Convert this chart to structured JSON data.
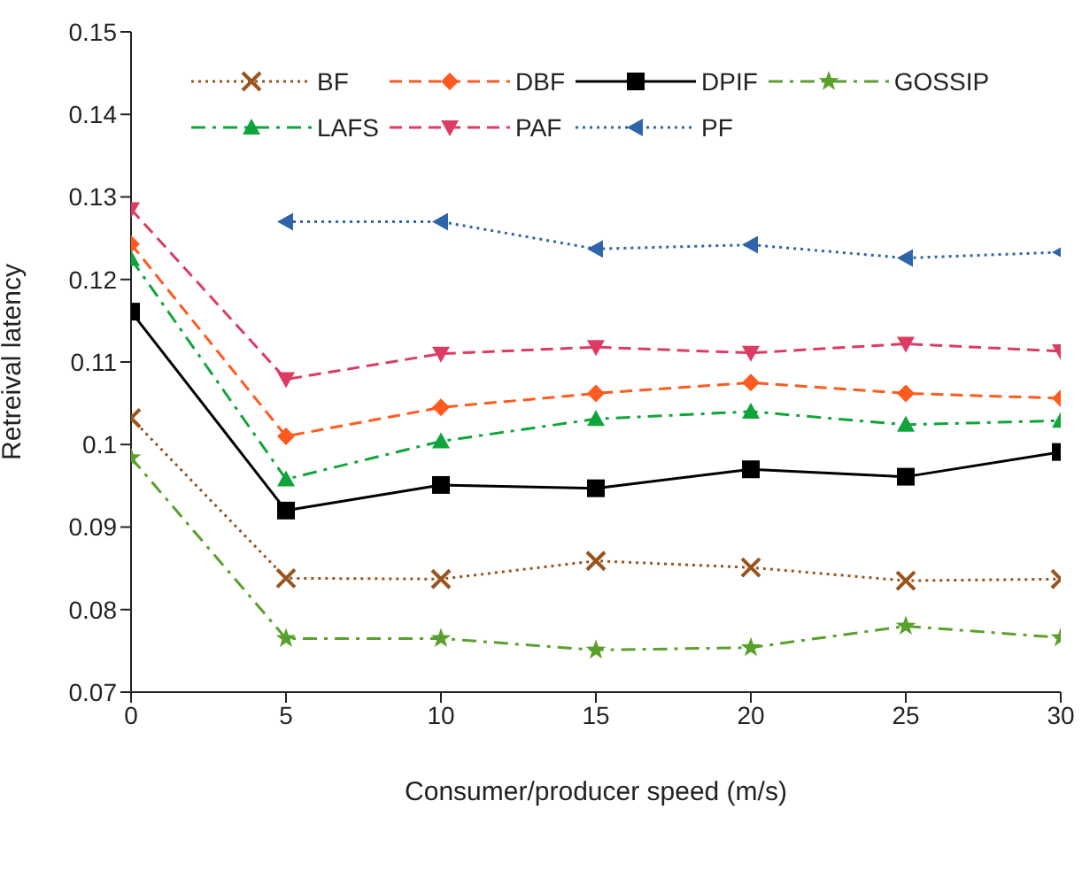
{
  "chart_data": {
    "type": "line",
    "xlabel": "Consumer/producer speed (m/s)",
    "ylabel": "Retreival latency",
    "x": [
      0,
      5,
      10,
      15,
      20,
      25,
      30
    ],
    "xlim": [
      0,
      30
    ],
    "xticks": [
      0,
      5,
      10,
      15,
      20,
      25,
      30
    ],
    "ylim": [
      0.07,
      0.15
    ],
    "yticks": [
      0.07,
      0.08,
      0.09,
      {
        "value": 0.1,
        "label": "0.1"
      },
      0.11,
      0.12,
      0.13,
      0.14,
      0.15
    ],
    "grid": false,
    "legend": "top",
    "series": [
      {
        "name": "BF",
        "color": "#99541e",
        "marker": "cross",
        "line_style": "dotted",
        "values": [
          0.1032,
          0.0838,
          0.0837,
          0.0859,
          0.0851,
          0.0835,
          0.0837
        ]
      },
      {
        "name": "DBF",
        "color": "#ff5a1f",
        "marker": "diamond",
        "line_style": "dashed",
        "values": [
          0.1243,
          0.101,
          0.1045,
          0.1062,
          0.1075,
          0.1062,
          0.1056
        ]
      },
      {
        "name": "DPIF",
        "color": "#000000",
        "marker": "square",
        "line_style": "solid",
        "values": [
          0.1161,
          0.092,
          0.0951,
          0.0947,
          0.097,
          0.0961,
          0.0991
        ]
      },
      {
        "name": "GOSSIP",
        "color": "#5aa02c",
        "marker": "star",
        "line_style": "dashdot",
        "values": [
          0.0984,
          0.0765,
          0.0765,
          0.0751,
          0.0754,
          0.078,
          0.0766
        ]
      },
      {
        "name": "LAFS",
        "color": "#10a53a",
        "marker": "triangle",
        "line_style": "dashdot",
        "values": [
          0.1225,
          0.0958,
          0.1004,
          0.1031,
          0.104,
          0.1024,
          0.1029
        ]
      },
      {
        "name": "PAF",
        "color": "#dc3c64",
        "marker": "triangle-down",
        "line_style": "dashed",
        "values": [
          0.1285,
          0.1079,
          0.111,
          0.1118,
          0.1111,
          0.1122,
          0.1113
        ]
      },
      {
        "name": "PF",
        "color": "#2f64a8",
        "marker": "triangle-left",
        "line_style": "dotted",
        "values": [
          null,
          0.127,
          0.127,
          0.1237,
          0.1242,
          0.1226,
          0.1233
        ]
      }
    ]
  }
}
